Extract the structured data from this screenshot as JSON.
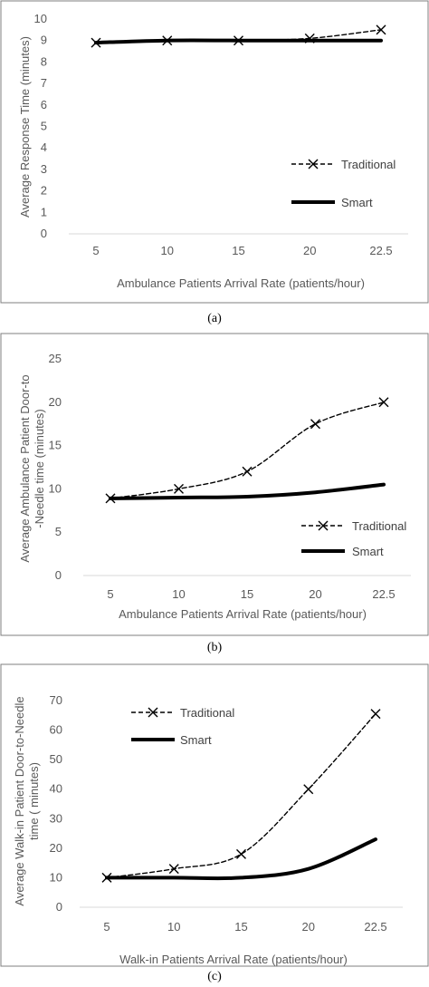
{
  "chart_data": [
    {
      "type": "line",
      "caption": "(a)",
      "categories": [
        "5",
        "10",
        "15",
        "20",
        "22.5"
      ],
      "series": [
        {
          "name": "Traditional",
          "values": [
            8.9,
            9.0,
            9.0,
            9.1,
            9.5
          ],
          "style": "dashed",
          "marker": "x",
          "color": "#000000"
        },
        {
          "name": "Smart",
          "values": [
            8.9,
            9.0,
            9.0,
            9.0,
            9.0
          ],
          "style": "solid",
          "marker": "none",
          "color": "#000000"
        }
      ],
      "xlabel": "Ambulance Patients Arrival Rate (patients/hour)",
      "ylabel": "Average Response Time  (minutes)",
      "ylim": [
        0,
        10
      ],
      "yticks": [
        "0",
        "1",
        "2",
        "3",
        "4",
        "5",
        "6",
        "7",
        "8",
        "9",
        "10"
      ],
      "grid": false,
      "legend_position": "bottom-right"
    },
    {
      "type": "line",
      "caption": "(b)",
      "categories": [
        "5",
        "10",
        "15",
        "20",
        "22.5"
      ],
      "series": [
        {
          "name": "Traditional",
          "values": [
            8.9,
            10.0,
            12.0,
            17.5,
            20.0
          ],
          "style": "dashed",
          "marker": "x",
          "color": "#000000"
        },
        {
          "name": "Smart",
          "values": [
            8.9,
            9.0,
            9.1,
            9.6,
            10.5
          ],
          "style": "solid",
          "marker": "none",
          "color": "#000000"
        }
      ],
      "xlabel": "Ambulance Patients Arrival Rate (patients/hour)",
      "ylabel": "Average Ambulance Patient Door-to-Needle time (minutes)",
      "ylim": [
        0,
        25
      ],
      "yticks": [
        "0",
        "5",
        "10",
        "15",
        "20",
        "25"
      ],
      "grid": false,
      "legend_position": "bottom-right"
    },
    {
      "type": "line",
      "caption": "(c)",
      "categories": [
        "5",
        "10",
        "15",
        "20",
        "22.5"
      ],
      "series": [
        {
          "name": "Traditional",
          "values": [
            10,
            13,
            18,
            40,
            65.5
          ],
          "style": "dashed",
          "marker": "x",
          "color": "#000000"
        },
        {
          "name": "Smart",
          "values": [
            10,
            10,
            10,
            13,
            23
          ],
          "style": "solid",
          "marker": "none",
          "color": "#000000"
        }
      ],
      "xlabel": "Walk-in Patients Arrival Rate (patients/hour)",
      "ylabel": "Average Walk-in Patient Door-to-Needle time ( minutes)",
      "ylim": [
        0,
        70
      ],
      "yticks": [
        "0",
        "10",
        "20",
        "30",
        "40",
        "50",
        "60",
        "70"
      ],
      "grid": false,
      "legend_position": "top-left"
    }
  ]
}
